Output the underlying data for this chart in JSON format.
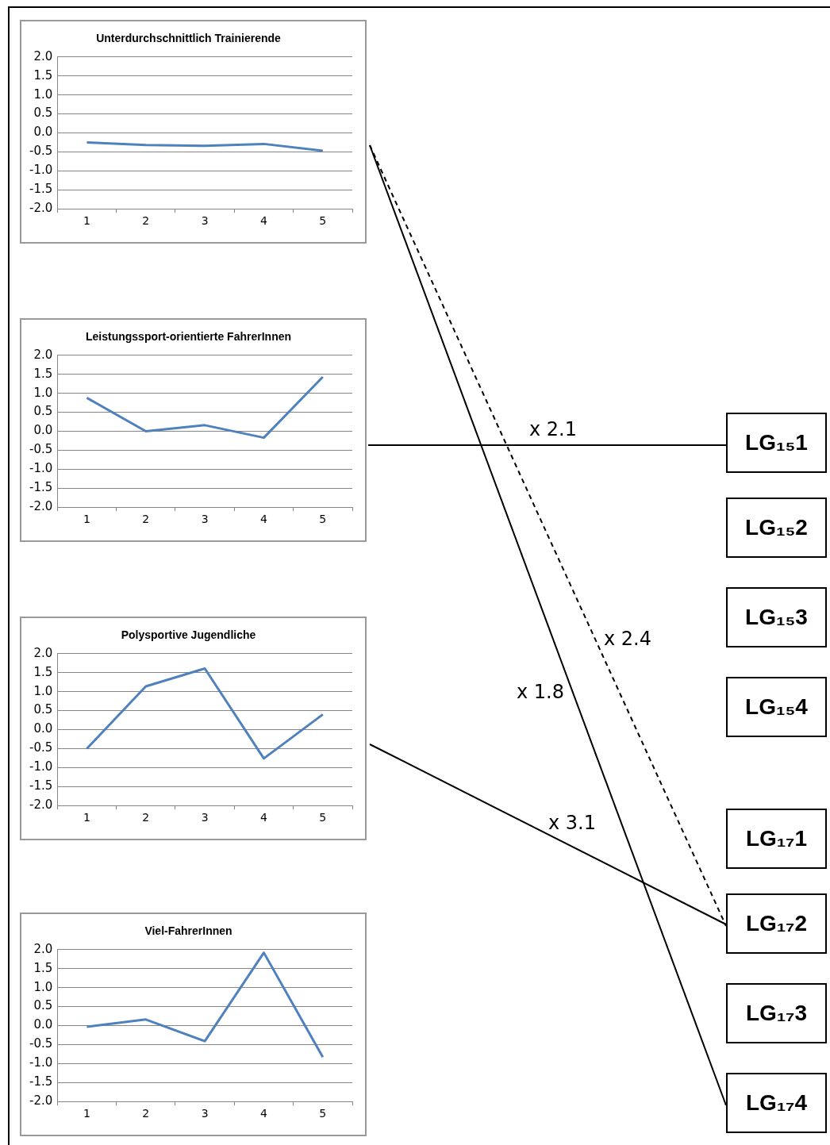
{
  "chart_data": [
    {
      "type": "line",
      "title": "Unterdurchschnittlich Trainierende",
      "categories": [
        "1",
        "2",
        "3",
        "4",
        "5"
      ],
      "series": [
        {
          "color": "#4f81bd",
          "values": [
            -0.25,
            -0.32,
            -0.34,
            -0.29,
            -0.47
          ]
        }
      ],
      "ylim": [
        -2,
        2
      ],
      "yticks": [
        {
          "value": -2,
          "label": "-2.0"
        },
        {
          "value": -1.5,
          "label": "-1.5"
        },
        {
          "value": -1,
          "label": "-1.0"
        },
        {
          "value": -0.5,
          "label": "-0.5"
        },
        {
          "value": 0,
          "label": "0.0"
        },
        {
          "value": 0.5,
          "label": "0.5"
        },
        {
          "value": 1,
          "label": "1.0"
        },
        {
          "value": 1.5,
          "label": "1.5"
        },
        {
          "value": 2,
          "label": "2.0"
        }
      ],
      "grid": "y",
      "legend": false,
      "marker": "none"
    },
    {
      "type": "line",
      "title": "Leistungssport-orientierte FahrerInnen",
      "categories": [
        "1",
        "2",
        "3",
        "4",
        "5"
      ],
      "series": [
        {
          "color": "#4f81bd",
          "values": [
            0.88,
            0.0,
            0.16,
            -0.17,
            1.43
          ]
        }
      ],
      "ylim": [
        -2,
        2
      ],
      "yticks": [
        {
          "value": -2,
          "label": "-2.0"
        },
        {
          "value": -1.5,
          "label": "-1.5"
        },
        {
          "value": -1,
          "label": "-1.0"
        },
        {
          "value": -0.5,
          "label": "-0.5"
        },
        {
          "value": 0,
          "label": "0.0"
        },
        {
          "value": 0.5,
          "label": "0.5"
        },
        {
          "value": 1,
          "label": "1.0"
        },
        {
          "value": 1.5,
          "label": "1.5"
        },
        {
          "value": 2,
          "label": "2.0"
        }
      ],
      "grid": "y",
      "legend": false,
      "marker": "none"
    },
    {
      "type": "line",
      "title": "Polysportive Jugendliche",
      "categories": [
        "1",
        "2",
        "3",
        "4",
        "5"
      ],
      "series": [
        {
          "color": "#4f81bd",
          "values": [
            -0.5,
            1.14,
            1.61,
            -0.76,
            0.4
          ]
        }
      ],
      "ylim": [
        -2,
        2
      ],
      "yticks": [
        {
          "value": -2,
          "label": "-2.0"
        },
        {
          "value": -1.5,
          "label": "-1.5"
        },
        {
          "value": -1,
          "label": "-1.0"
        },
        {
          "value": -0.5,
          "label": "-0.5"
        },
        {
          "value": 0,
          "label": "0.0"
        },
        {
          "value": 0.5,
          "label": "0.5"
        },
        {
          "value": 1,
          "label": "1.0"
        },
        {
          "value": 1.5,
          "label": "1.5"
        },
        {
          "value": 2,
          "label": "2.0"
        }
      ],
      "grid": "y",
      "legend": false,
      "marker": "none"
    },
    {
      "type": "line",
      "title": "Viel-FahrerInnen",
      "categories": [
        "1",
        "2",
        "3",
        "4",
        "5"
      ],
      "series": [
        {
          "color": "#4f81bd",
          "values": [
            -0.03,
            0.16,
            -0.41,
            1.92,
            -0.83
          ]
        }
      ],
      "ylim": [
        -2,
        2
      ],
      "yticks": [
        {
          "value": -2,
          "label": "-2.0"
        },
        {
          "value": -1.5,
          "label": "-1.5"
        },
        {
          "value": -1,
          "label": "-1.0"
        },
        {
          "value": -0.5,
          "label": "-0.5"
        },
        {
          "value": 0,
          "label": "0.0"
        },
        {
          "value": 0.5,
          "label": "0.5"
        },
        {
          "value": 1,
          "label": "1.0"
        },
        {
          "value": 1.5,
          "label": "1.5"
        },
        {
          "value": 2,
          "label": "2.0"
        }
      ],
      "grid": "y",
      "legend": false,
      "marker": "none"
    },
    {
      "type": "other",
      "annotations": [
        "LG₁₅1",
        "LG₁₅2",
        "LG₁₅3",
        "LG₁₅4",
        "LG₁₇1",
        "LG₁₇2",
        "LG₁₇3",
        "LG₁₇4",
        "x 2.1",
        "x 2.4",
        "x 1.8",
        "x 3.1"
      ]
    }
  ]
}
